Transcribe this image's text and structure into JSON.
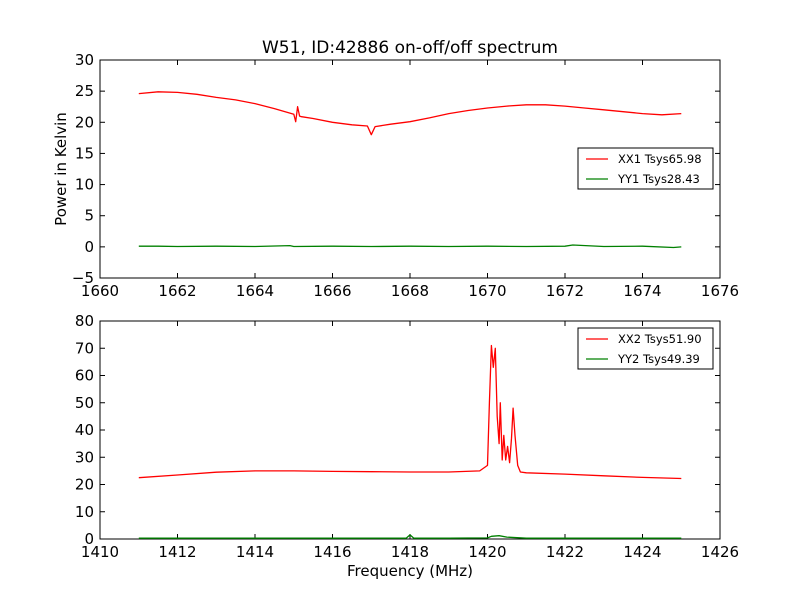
{
  "figure": {
    "title": "W51, ID:42886 on-off/off spectrum"
  },
  "colors": {
    "red": "#ff0000",
    "green": "#008000",
    "axes": "#000000",
    "background": "#ffffff"
  },
  "chart_data": [
    {
      "type": "line",
      "title": "W51, ID:42886 on-off/off spectrum",
      "xlabel": "",
      "ylabel": "Power in Kelvin",
      "xlim": [
        1660,
        1676
      ],
      "ylim": [
        -5,
        30
      ],
      "xticks": [
        1660,
        1662,
        1664,
        1666,
        1668,
        1670,
        1672,
        1674,
        1676
      ],
      "yticks": [
        -5,
        0,
        5,
        10,
        15,
        20,
        25,
        30
      ],
      "grid": false,
      "legend_position": "right",
      "series": [
        {
          "name": "XX1 Tsys65.98",
          "color": "#ff0000",
          "x": [
            1661.0,
            1661.5,
            1662.0,
            1662.5,
            1663.0,
            1663.5,
            1664.0,
            1664.5,
            1665.0,
            1665.05,
            1665.1,
            1665.15,
            1665.2,
            1665.5,
            1666.0,
            1666.5,
            1666.9,
            1667.0,
            1667.1,
            1667.3,
            1667.5,
            1668.0,
            1668.5,
            1669.0,
            1669.5,
            1670.0,
            1670.5,
            1671.0,
            1671.5,
            1672.0,
            1672.5,
            1673.0,
            1673.5,
            1674.0,
            1674.5,
            1675.0
          ],
          "y": [
            24.6,
            24.9,
            24.8,
            24.5,
            24.0,
            23.6,
            23.0,
            22.2,
            21.3,
            20.1,
            22.5,
            21.0,
            20.9,
            20.6,
            20.0,
            19.6,
            19.4,
            18.0,
            19.3,
            19.5,
            19.7,
            20.1,
            20.7,
            21.4,
            21.9,
            22.3,
            22.6,
            22.8,
            22.8,
            22.6,
            22.3,
            22.0,
            21.7,
            21.4,
            21.2,
            21.4
          ]
        },
        {
          "name": "YY1 Tsys28.43",
          "color": "#008000",
          "x": [
            1661.0,
            1661.5,
            1662.0,
            1663.0,
            1664.0,
            1664.9,
            1665.0,
            1666.0,
            1667.0,
            1668.0,
            1669.0,
            1670.0,
            1671.0,
            1672.0,
            1672.2,
            1673.0,
            1674.0,
            1674.8,
            1675.0
          ],
          "y": [
            0.1,
            0.1,
            0.05,
            0.1,
            0.05,
            0.2,
            0.05,
            0.1,
            0.05,
            0.1,
            0.05,
            0.1,
            0.05,
            0.1,
            0.3,
            0.05,
            0.1,
            -0.1,
            0.0
          ]
        }
      ]
    },
    {
      "type": "line",
      "title": "",
      "xlabel": "Frequency (MHz)",
      "ylabel": "",
      "xlim": [
        1410,
        1426
      ],
      "ylim": [
        0,
        80
      ],
      "xticks": [
        1410,
        1412,
        1414,
        1416,
        1418,
        1420,
        1422,
        1424,
        1426
      ],
      "yticks": [
        0,
        10,
        20,
        30,
        40,
        50,
        60,
        70,
        80
      ],
      "grid": false,
      "legend_position": "top-right",
      "series": [
        {
          "name": "XX2 Tsys51.90",
          "color": "#ff0000",
          "x": [
            1411.0,
            1412.0,
            1413.0,
            1414.0,
            1415.0,
            1416.0,
            1417.0,
            1418.0,
            1419.0,
            1419.8,
            1420.0,
            1420.05,
            1420.1,
            1420.15,
            1420.2,
            1420.25,
            1420.3,
            1420.33,
            1420.38,
            1420.42,
            1420.47,
            1420.52,
            1420.57,
            1420.62,
            1420.66,
            1420.71,
            1420.78,
            1420.85,
            1421.0,
            1422.0,
            1423.0,
            1424.0,
            1425.0
          ],
          "y": [
            22.5,
            23.5,
            24.5,
            25.0,
            25.0,
            24.8,
            24.7,
            24.6,
            24.6,
            25.0,
            27.0,
            50.0,
            71.0,
            63.0,
            70.0,
            45.0,
            35.0,
            50.0,
            29.0,
            38.0,
            29.0,
            34.0,
            28.0,
            37.0,
            48.0,
            38.0,
            27.0,
            24.6,
            24.3,
            23.8,
            23.2,
            22.6,
            22.2
          ]
        },
        {
          "name": "YY2 Tsys49.39",
          "color": "#008000",
          "x": [
            1411.0,
            1413.0,
            1415.0,
            1417.0,
            1417.9,
            1418.0,
            1418.1,
            1419.0,
            1420.0,
            1420.1,
            1420.3,
            1420.5,
            1421.0,
            1423.0,
            1425.0
          ],
          "y": [
            0.3,
            0.3,
            0.3,
            0.3,
            0.3,
            1.5,
            0.3,
            0.3,
            0.4,
            1.0,
            1.2,
            0.7,
            0.3,
            0.3,
            0.3
          ]
        }
      ]
    }
  ]
}
